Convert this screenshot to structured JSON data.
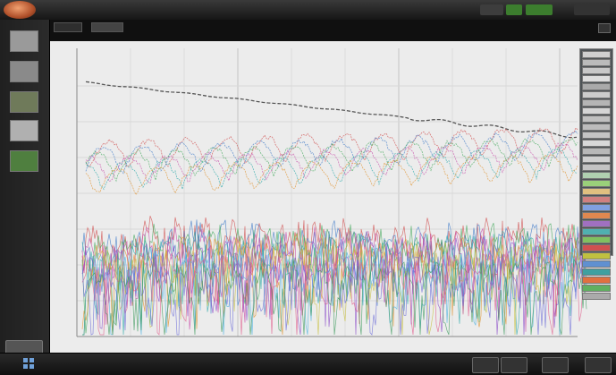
{
  "menu": [],
  "window_title": "",
  "top_buttons": [
    {
      "label": "",
      "color": "#3d3d3d",
      "name": "top-button-1"
    },
    {
      "label": "",
      "color": "#3c7d2e",
      "name": "top-button-2"
    },
    {
      "label": "",
      "color": "#3c7d2e",
      "name": "top-button-3"
    },
    {
      "label": "",
      "color": "#333333",
      "name": "top-button-4"
    }
  ],
  "sidebar": {
    "items": [
      {
        "label": "",
        "thumb": "#9a9a9a"
      },
      {
        "label": "",
        "thumb": "#8a8a8a"
      },
      {
        "label": "",
        "thumb": "#6f7a5a"
      },
      {
        "label": "",
        "thumb": "#b0b0b0"
      },
      {
        "label": "",
        "thumb": "#4f7f3f"
      }
    ]
  },
  "tabs": [
    {
      "label": ""
    },
    {
      "label": ""
    }
  ],
  "subtabs": [
    "",
    ""
  ],
  "legend_colors": [
    "#d0d0d0",
    "#bbbbbb",
    "#c8c8c8",
    "#dddddd",
    "#aaaaaa",
    "#cccccc",
    "#b5b5b5",
    "#d5d5d5",
    "#c0c0c0",
    "#bcbcbc",
    "#c4c4c4",
    "#d8d8d8",
    "#b8b8b8",
    "#cfcfcf",
    "#c3c3c3",
    "#b0d0b0",
    "#9ad07a",
    "#e0c080",
    "#d08080",
    "#80a0e0",
    "#e08850",
    "#a070c0",
    "#50b0b0",
    "#80c060",
    "#d05050",
    "#c0c040",
    "#6090d0",
    "#40a0a0",
    "#e07040",
    "#60b060",
    "#aaaaaa"
  ],
  "chart_data": {
    "type": "line",
    "title": "",
    "xlabel": "",
    "ylabel": "",
    "x_ticks": [],
    "y_ticks": [],
    "grid": true,
    "legend_position": "right",
    "series_colors": [
      "#d04848",
      "#3b78c8",
      "#40a85a",
      "#c84aa8",
      "#2aa8a8",
      "#e0902a",
      "#8a4ac8",
      "#c8c040",
      "#48b0e0",
      "#e05a8a",
      "#6a6ad8",
      "#38985a"
    ],
    "reference_series_color": "#555555"
  },
  "bottom_buttons": [
    {
      "label": "",
      "name": "bottom-button-1"
    },
    {
      "label": "",
      "name": "bottom-button-2"
    },
    {
      "label": "",
      "name": "bottom-button-3"
    },
    {
      "label": "",
      "name": "bottom-button-4"
    }
  ]
}
